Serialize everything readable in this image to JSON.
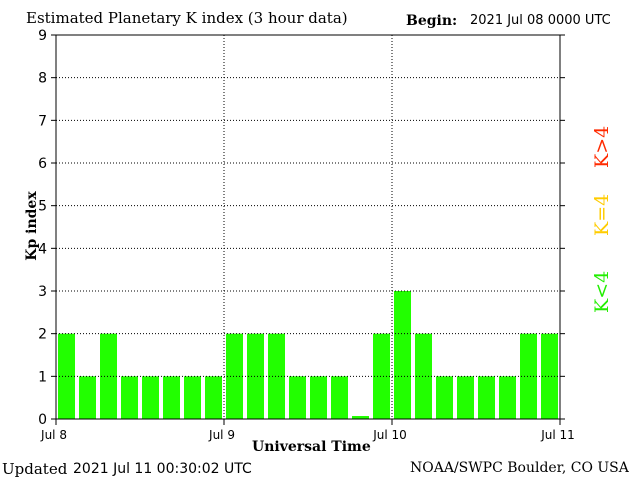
{
  "header": {
    "title": "Estimated Planetary K index (3 hour data)",
    "begin_label": "Begin:",
    "begin_value": "2021 Jul 08 0000 UTC"
  },
  "footer": {
    "updated_label": "Updated",
    "updated_value": "2021 Jul 11 00:30:02 UTC",
    "source": "NOAA/SWPC Boulder, CO USA"
  },
  "legend": {
    "high": {
      "label": "K>4",
      "color": "#ff2a00"
    },
    "equal": {
      "label": "K=4",
      "color": "#ffcc00"
    },
    "low": {
      "label": "K<4",
      "color": "#22ee00"
    }
  },
  "chart_data": {
    "type": "bar",
    "title": "Estimated Planetary K index (3 hour data)",
    "xlabel": "Universal Time",
    "ylabel": "Kp index",
    "ylim": [
      0,
      9
    ],
    "yticks": [
      "0",
      "1",
      "2",
      "3",
      "4",
      "5",
      "6",
      "7",
      "8",
      "9"
    ],
    "xticks": [
      "Jul 8",
      "Jul 9",
      "Jul 10",
      "Jul 11"
    ],
    "grid": true,
    "bar_color": "#22ff00",
    "values": [
      2,
      1,
      2,
      1,
      1,
      1,
      1,
      1,
      2,
      2,
      2,
      1,
      1,
      1,
      0.07,
      2,
      3,
      2,
      1,
      1,
      1,
      1,
      2,
      2
    ]
  }
}
